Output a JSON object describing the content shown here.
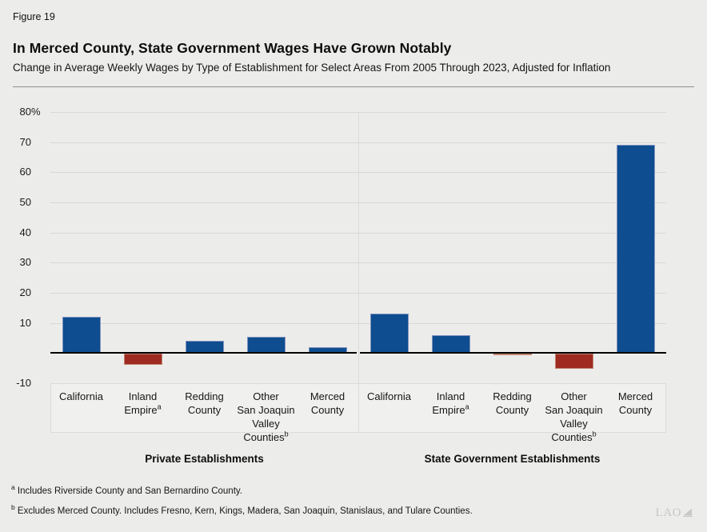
{
  "figure_label": "Figure 19",
  "title": "In Merced County, State Government Wages Have Grown Notably",
  "subtitle": "Change in Average Weekly Wages by Type of Establishment for Select Areas From 2005 Through 2023, Adjusted for Inflation",
  "logo": {
    "text": "LAO"
  },
  "colors": {
    "background": "#ECECEA",
    "positive_bar": "#0E4D8F",
    "negative_bar": "#9F2A20",
    "positive_bar_border": "#8193BE",
    "negative_bar_border": "#C08572",
    "gridline": "#D8D8D6",
    "baseline": "#000000",
    "band_fill": "#F0F0EE",
    "band_border": "#DBDBD9"
  },
  "chart_data": {
    "type": "bar",
    "title": "",
    "xlabel": "",
    "ylabel": "",
    "ylim": [
      -10,
      80
    ],
    "ytick_step": 10,
    "ytick_max_label": "80%",
    "grid": true,
    "zero_line": true,
    "legend": "none",
    "groups": [
      {
        "label": "Private Establishments",
        "categories": [
          {
            "lines": [
              "California"
            ],
            "sup": ""
          },
          {
            "lines": [
              "Inland",
              "Empire"
            ],
            "sup": "a"
          },
          {
            "lines": [
              "Redding",
              "County"
            ],
            "sup": ""
          },
          {
            "lines": [
              "Other",
              "San Joaquin",
              "Valley",
              "Counties"
            ],
            "sup": "b"
          },
          {
            "lines": [
              "Merced",
              "County"
            ],
            "sup": ""
          }
        ],
        "values": [
          12,
          -3.5,
          4,
          5.5,
          2
        ]
      },
      {
        "label": "State Government Establishments",
        "categories": [
          {
            "lines": [
              "California"
            ],
            "sup": ""
          },
          {
            "lines": [
              "Inland",
              "Empire"
            ],
            "sup": "a"
          },
          {
            "lines": [
              "Redding",
              "County"
            ],
            "sup": ""
          },
          {
            "lines": [
              "Other",
              "San Joaquin",
              "Valley",
              "Counties"
            ],
            "sup": "b"
          },
          {
            "lines": [
              "Merced",
              "County"
            ],
            "sup": ""
          }
        ],
        "values": [
          13,
          6,
          -0.5,
          -5,
          69
        ]
      }
    ]
  },
  "footnotes": [
    {
      "marker": "a",
      "text": "Includes Riverside County and San Bernardino County."
    },
    {
      "marker": "b",
      "text": "Excludes Merced County. Includes Fresno, Kern, Kings, Madera, San Joaquin, Stanislaus, and Tulare Counties."
    }
  ]
}
